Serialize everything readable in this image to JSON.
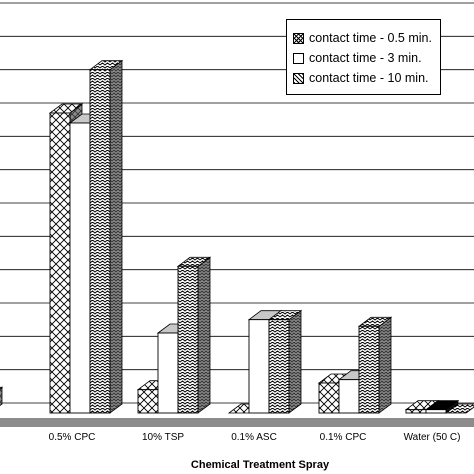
{
  "chart_data": {
    "type": "bar",
    "style": "3d-clustered",
    "title": "",
    "xlabel": "Chemical Treatment Spray",
    "ylabel": "",
    "ylim": [
      0,
      12
    ],
    "grid": true,
    "legend_position": "top-right",
    "categories": [
      "",
      "0.5% CPC",
      "10% TSP",
      "0.1% ASC",
      "0.1% CPC",
      "Water (50 C)"
    ],
    "series": [
      {
        "name": "contact time - 0.5 min.",
        "pattern": "crosshatch",
        "values": [
          0.5,
          9.0,
          0.7,
          0.0,
          0.9,
          0.1
        ]
      },
      {
        "name": "contact time - 3 min.",
        "pattern": "plain",
        "values": [
          null,
          8.7,
          2.4,
          2.8,
          1.0,
          0.1
        ]
      },
      {
        "name": "contact time - 10 min.",
        "pattern": "wave",
        "values": [
          null,
          10.3,
          4.4,
          2.8,
          2.6,
          0.0
        ]
      }
    ],
    "colors": {
      "grid": "#000000",
      "floor": "#8c8c8c",
      "side": "#8a8a8a",
      "top": "#c8c8c8"
    }
  }
}
